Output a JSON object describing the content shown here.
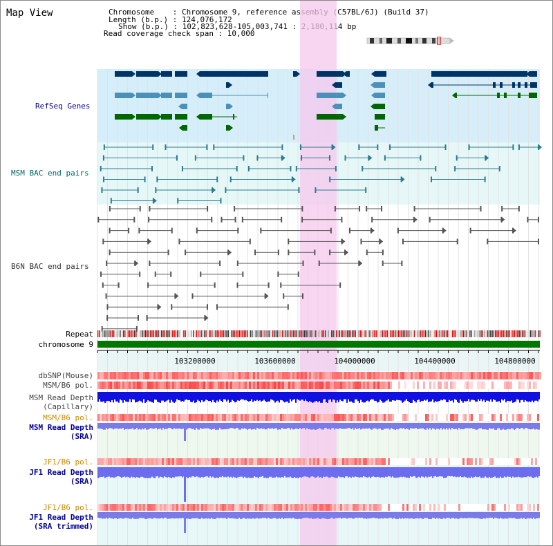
{
  "title": "Map View",
  "header": {
    "lines": [
      "Chromosome    : Chromosome 9, reference assembly (C57BL/6J) (Build 37)",
      "Length (b.p.) : 124,076,172",
      "Show (b.p.) : 102,823,628-105,003,741 : 2,180,114 bp",
      "Read coverage check span : 10,000"
    ]
  },
  "tracks": {
    "refseq": "RefSeq Genes",
    "msm_bac": "MSM BAC end pairs",
    "b6n_bac": "B6N BAC end pairs",
    "repeat": "Repeat",
    "chromosome": "chromosome 9",
    "dbsnp": "dbSNP(Mouse)",
    "msm_b6_pol": "MSM/B6 pol.",
    "msm_depth_cap_1": "MSM Read Depth",
    "msm_depth_cap_2": "(Capillary)",
    "msm_b6_pol_sra": "MSM/B6 pol.",
    "msm_depth_sra_1": "MSM Read Depth",
    "msm_depth_sra_2": "(SRA)",
    "jf1_b6_pol": "JF1/B6 pol.",
    "jf1_depth_sra_1": "JF1 Read Depth",
    "jf1_depth_sra_2": "(SRA)",
    "jf1_b6_pol_2": "JF1/B6 pol.",
    "jf1_depth_trim_1": "JF1 Read Depth",
    "jf1_depth_trim_2": "(SRA trimmed)"
  },
  "axis": {
    "ticks": [
      "103200000",
      "103600000",
      "104000000",
      "104400000",
      "104800000"
    ]
  },
  "colors": {
    "navy": "#003366",
    "teal": "#4a90b8",
    "green": "#006600",
    "blue_label": "#000099",
    "orange_label": "#cc8800",
    "highlight": "#f8d8f0"
  }
}
